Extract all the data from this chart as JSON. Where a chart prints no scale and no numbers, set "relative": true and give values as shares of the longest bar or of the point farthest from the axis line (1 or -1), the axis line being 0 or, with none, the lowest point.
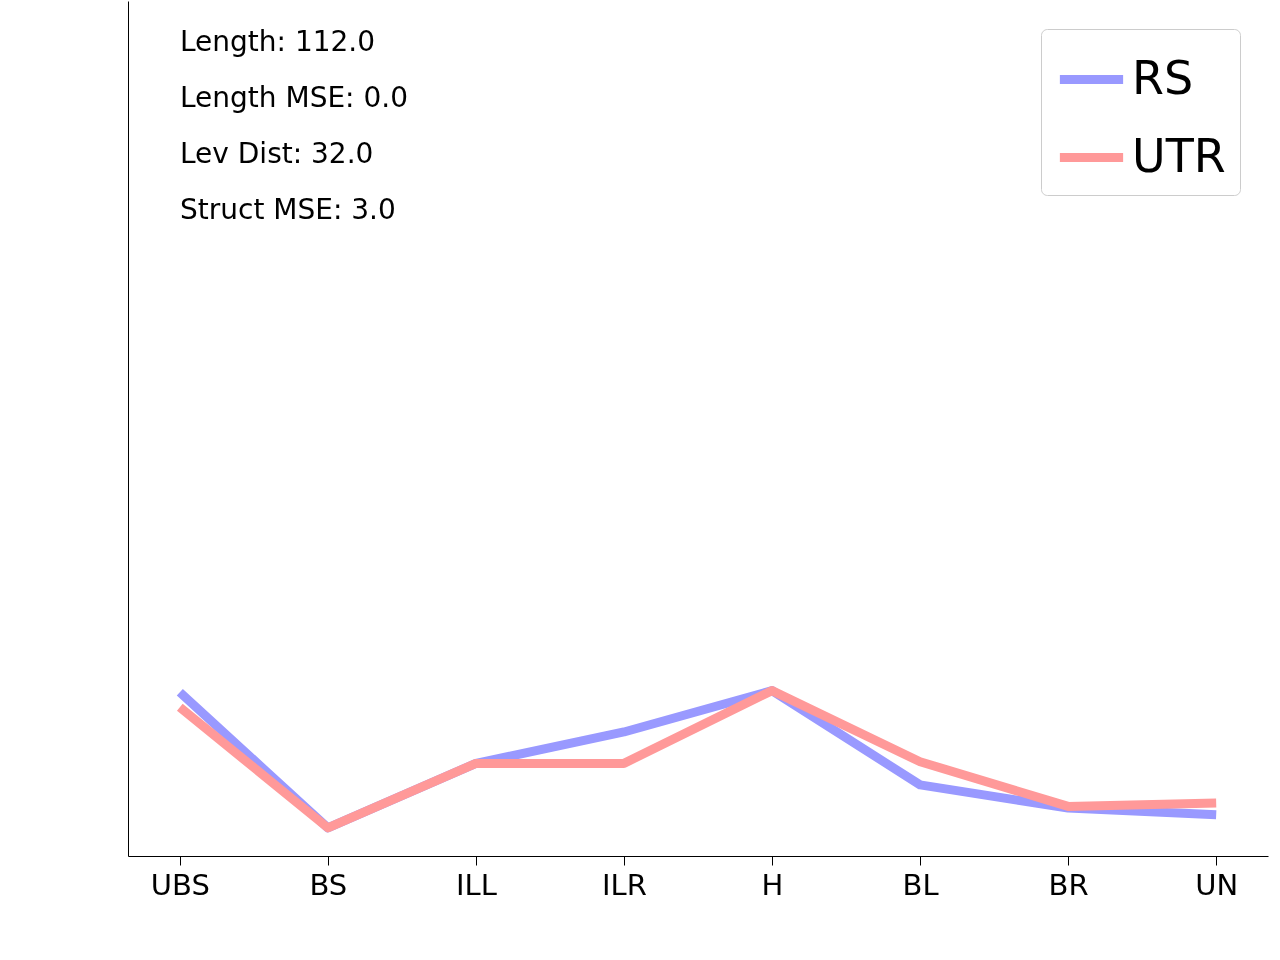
{
  "chart_data": {
    "type": "line",
    "relative": true,
    "categories": [
      "UBS",
      "BS",
      "ILL",
      "ILR",
      "H",
      "BL",
      "BR",
      "UN"
    ],
    "series": [
      {
        "name": "RS",
        "color": "#9999ff",
        "values": [
          0.99,
          0.17,
          0.56,
          0.75,
          1.0,
          0.43,
          0.29,
          0.25
        ]
      },
      {
        "name": "UTR",
        "color": "#ff9999",
        "values": [
          0.9,
          0.17,
          0.56,
          0.56,
          1.0,
          0.57,
          0.3,
          0.32
        ]
      }
    ],
    "annotations": [
      "Length: 112.0",
      "Length MSE: 0.0",
      "Lev Dist: 32.0",
      "Struct MSE: 3.0"
    ],
    "legend": "top right",
    "grid": false,
    "marker": "none",
    "line_style": "solid"
  }
}
